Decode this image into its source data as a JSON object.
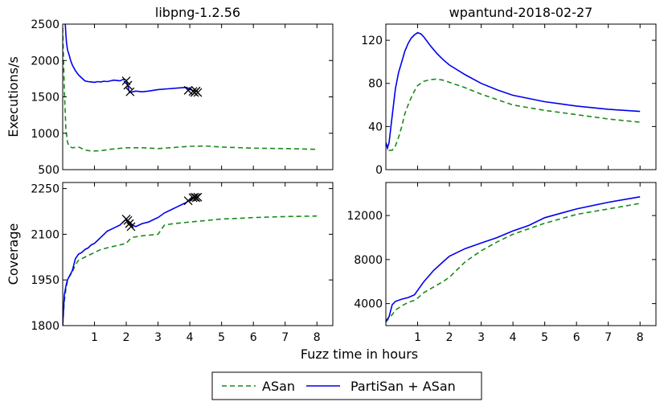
{
  "figure": {
    "xlabel": "Fuzz time in hours",
    "legend": [
      {
        "label": "ASan",
        "color": "#1a8a1a",
        "style": "dashed"
      },
      {
        "label": "PartiSan + ASan",
        "color": "#0000ee",
        "style": "solid"
      }
    ]
  },
  "chart_data": [
    {
      "type": "line",
      "panel": "top-left",
      "title": "libpng-1.2.56",
      "ylabel": "Executions/s",
      "xlabel": "",
      "xlim": [
        0,
        8.5
      ],
      "ylim": [
        500,
        2500
      ],
      "xticks": [
        1,
        2,
        3,
        4,
        5,
        6,
        7,
        8
      ],
      "yticks": [
        500,
        1000,
        1500,
        2000,
        2500
      ],
      "show_xticklabels": false,
      "series": [
        {
          "name": "ASan",
          "color": "#1a8a1a",
          "dashed": true,
          "x": [
            0,
            0.05,
            0.1,
            0.15,
            0.2,
            0.3,
            0.5,
            0.7,
            0.9,
            1.2,
            1.5,
            2,
            2.5,
            3,
            3.5,
            4,
            4.5,
            5,
            6,
            7,
            8
          ],
          "y": [
            2450,
            1600,
            1050,
            880,
            820,
            800,
            810,
            770,
            755,
            760,
            780,
            800,
            800,
            790,
            805,
            820,
            825,
            810,
            795,
            790,
            780
          ]
        },
        {
          "name": "PartiSan + ASan",
          "color": "#0000ee",
          "dashed": false,
          "x": [
            0.08,
            0.1,
            0.12,
            0.15,
            0.2,
            0.25,
            0.3,
            0.4,
            0.5,
            0.6,
            0.7,
            0.8,
            0.9,
            1,
            1.1,
            1.2,
            1.3,
            1.4,
            1.5,
            1.6,
            1.7,
            1.8,
            1.9,
            2,
            2.05,
            2.1,
            2.2,
            2.3,
            2.5,
            2.7,
            3,
            3.3,
            3.6,
            3.9,
            4.0,
            4.1,
            4.2,
            4.25
          ],
          "y": [
            2500,
            2350,
            2250,
            2150,
            2080,
            2000,
            1940,
            1860,
            1800,
            1760,
            1720,
            1710,
            1705,
            1700,
            1710,
            1705,
            1715,
            1710,
            1720,
            1730,
            1725,
            1720,
            1740,
            1730,
            1650,
            1560,
            1570,
            1580,
            1570,
            1580,
            1600,
            1610,
            1620,
            1630,
            1600,
            1590,
            1580,
            1580
          ]
        }
      ],
      "markers": {
        "symbol": "x",
        "color": "#000000",
        "x": [
          2.0,
          2.05,
          2.12,
          3.95,
          4.1,
          4.15,
          4.2,
          4.25
        ],
        "y": [
          1720,
          1660,
          1570,
          1590,
          1575,
          1560,
          1580,
          1560
        ]
      }
    },
    {
      "type": "line",
      "panel": "top-right",
      "title": "wpantund-2018-02-27",
      "ylabel": "",
      "xlabel": "",
      "xlim": [
        0,
        8.5
      ],
      "ylim": [
        0,
        135
      ],
      "xticks": [
        1,
        2,
        3,
        4,
        5,
        6,
        7,
        8
      ],
      "yticks": [
        0,
        40,
        80,
        120
      ],
      "show_xticklabels": false,
      "series": [
        {
          "name": "ASan",
          "color": "#1a8a1a",
          "dashed": true,
          "x": [
            0,
            0.1,
            0.2,
            0.3,
            0.4,
            0.5,
            0.6,
            0.7,
            0.8,
            0.9,
            1,
            1.2,
            1.4,
            1.6,
            1.8,
            2,
            2.5,
            3,
            3.5,
            4,
            5,
            6,
            7,
            8
          ],
          "y": [
            25,
            18,
            18,
            22,
            30,
            40,
            52,
            60,
            67,
            73,
            78,
            82,
            83.5,
            84,
            83,
            81,
            76,
            70,
            65,
            60,
            55,
            51,
            47,
            44
          ]
        },
        {
          "name": "PartiSan + ASan",
          "color": "#0000ee",
          "dashed": false,
          "x": [
            0,
            0.05,
            0.1,
            0.2,
            0.3,
            0.4,
            0.5,
            0.6,
            0.7,
            0.8,
            0.9,
            1,
            1.1,
            1.2,
            1.4,
            1.6,
            1.8,
            2,
            2.5,
            3,
            3.5,
            4,
            5,
            6,
            7,
            8
          ],
          "y": [
            25,
            20,
            25,
            50,
            75,
            90,
            100,
            110,
            117,
            122,
            125,
            127,
            126,
            123,
            115,
            108,
            102,
            97,
            88,
            80,
            74,
            69,
            63,
            59,
            56,
            54
          ]
        }
      ]
    },
    {
      "type": "line",
      "panel": "bottom-left",
      "title": "",
      "ylabel": "Coverage",
      "xlabel": "",
      "xlim": [
        0,
        8.5
      ],
      "ylim": [
        1800,
        2270
      ],
      "xticks": [
        1,
        2,
        3,
        4,
        5,
        6,
        7,
        8
      ],
      "yticks": [
        1800,
        1950,
        2100,
        2250
      ],
      "show_xticklabels": true,
      "series": [
        {
          "name": "ASan",
          "color": "#1a8a1a",
          "dashed": true,
          "x": [
            0,
            0.05,
            0.1,
            0.15,
            0.2,
            0.3,
            0.4,
            0.5,
            0.6,
            0.8,
            1,
            1.2,
            1.5,
            1.8,
            2,
            2.1,
            2.2,
            2.5,
            3,
            3.1,
            3.2,
            3.5,
            4,
            4.5,
            5,
            5.5,
            6,
            7,
            8
          ],
          "y": [
            1800,
            1880,
            1920,
            1945,
            1960,
            1975,
            2000,
            2015,
            2020,
            2030,
            2040,
            2050,
            2058,
            2065,
            2070,
            2082,
            2090,
            2095,
            2100,
            2115,
            2130,
            2135,
            2140,
            2145,
            2150,
            2152,
            2155,
            2158,
            2160
          ]
        },
        {
          "name": "PartiSan + ASan",
          "color": "#0000ee",
          "dashed": false,
          "x": [
            0,
            0.05,
            0.1,
            0.15,
            0.2,
            0.3,
            0.4,
            0.5,
            0.6,
            0.7,
            0.8,
            0.9,
            1,
            1.1,
            1.2,
            1.3,
            1.4,
            1.5,
            1.6,
            1.8,
            1.9,
            2,
            2.05,
            2.1,
            2.2,
            2.3,
            2.5,
            2.7,
            2.9,
            3,
            3.2,
            3.4,
            3.6,
            3.8,
            3.9,
            4,
            4.1,
            4.2,
            4.25
          ],
          "y": [
            1800,
            1900,
            1930,
            1950,
            1960,
            1980,
            2020,
            2035,
            2040,
            2050,
            2055,
            2065,
            2070,
            2080,
            2090,
            2100,
            2110,
            2115,
            2120,
            2130,
            2140,
            2150,
            2145,
            2140,
            2130,
            2125,
            2135,
            2140,
            2150,
            2155,
            2170,
            2180,
            2190,
            2200,
            2205,
            2215,
            2220,
            2222,
            2222
          ]
        }
      ],
      "markers": {
        "symbol": "x",
        "color": "#000000",
        "x": [
          2.0,
          2.05,
          2.1,
          2.15,
          3.95,
          4.1,
          4.15,
          4.2,
          4.25
        ],
        "y": [
          2150,
          2145,
          2135,
          2125,
          2210,
          2220,
          2222,
          2220,
          2222
        ]
      }
    },
    {
      "type": "line",
      "panel": "bottom-right",
      "title": "",
      "ylabel": "",
      "xlabel": "",
      "xlim": [
        0,
        8.5
      ],
      "ylim": [
        2000,
        15000
      ],
      "xticks": [
        1,
        2,
        3,
        4,
        5,
        6,
        7,
        8
      ],
      "yticks": [
        4000,
        8000,
        12000
      ],
      "show_xticklabels": true,
      "series": [
        {
          "name": "ASan",
          "color": "#1a8a1a",
          "dashed": true,
          "x": [
            0,
            0.1,
            0.2,
            0.3,
            0.5,
            0.7,
            0.9,
            1,
            1.2,
            1.5,
            1.8,
            2,
            2.5,
            3,
            3.5,
            4,
            4.5,
            5,
            5.5,
            6,
            7,
            8
          ],
          "y": [
            2300,
            2700,
            3000,
            3400,
            3800,
            4100,
            4300,
            4500,
            5000,
            5500,
            6000,
            6400,
            7800,
            8800,
            9600,
            10300,
            10800,
            11300,
            11700,
            12100,
            12600,
            13100
          ]
        },
        {
          "name": "PartiSan + ASan",
          "color": "#0000ee",
          "dashed": false,
          "x": [
            0,
            0.1,
            0.2,
            0.3,
            0.5,
            0.7,
            0.9,
            1,
            1.2,
            1.5,
            1.8,
            2,
            2.5,
            3,
            3.5,
            4,
            4.5,
            5,
            5.5,
            6,
            7,
            8
          ],
          "y": [
            2400,
            2800,
            3900,
            4200,
            4400,
            4550,
            4800,
            5200,
            6000,
            7000,
            7800,
            8300,
            9000,
            9500,
            10000,
            10600,
            11100,
            11800,
            12200,
            12600,
            13200,
            13700
          ]
        }
      ]
    }
  ]
}
